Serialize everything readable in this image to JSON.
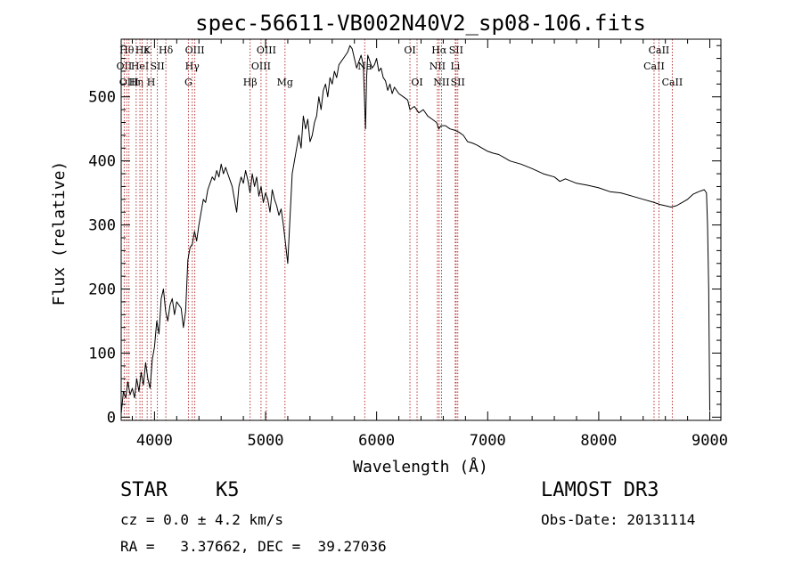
{
  "chart_data": {
    "type": "line",
    "title": "spec-56611-VB002N40V2_sp08-106.fits",
    "xlabel": "Wavelength (Å)",
    "ylabel": "Flux (relative)",
    "xlim": [
      3700,
      9100
    ],
    "ylim": [
      -5,
      590
    ],
    "x_ticks": [
      4000,
      5000,
      6000,
      7000,
      8000,
      9000
    ],
    "y_ticks": [
      0,
      100,
      200,
      300,
      400,
      500
    ],
    "grid": false,
    "series": [
      {
        "name": "flux",
        "color": "#000000",
        "points": [
          [
            3700,
            5
          ],
          [
            3720,
            40
          ],
          [
            3740,
            30
          ],
          [
            3760,
            55
          ],
          [
            3780,
            35
          ],
          [
            3800,
            45
          ],
          [
            3820,
            30
          ],
          [
            3840,
            60
          ],
          [
            3860,
            40
          ],
          [
            3880,
            70
          ],
          [
            3900,
            50
          ],
          [
            3920,
            85
          ],
          [
            3940,
            60
          ],
          [
            3960,
            45
          ],
          [
            3980,
            90
          ],
          [
            4000,
            110
          ],
          [
            4020,
            150
          ],
          [
            4040,
            130
          ],
          [
            4060,
            185
          ],
          [
            4080,
            200
          ],
          [
            4100,
            165
          ],
          [
            4120,
            150
          ],
          [
            4140,
            175
          ],
          [
            4160,
            185
          ],
          [
            4180,
            160
          ],
          [
            4200,
            180
          ],
          [
            4220,
            175
          ],
          [
            4240,
            170
          ],
          [
            4260,
            140
          ],
          [
            4280,
            165
          ],
          [
            4300,
            245
          ],
          [
            4320,
            265
          ],
          [
            4340,
            270
          ],
          [
            4360,
            290
          ],
          [
            4380,
            275
          ],
          [
            4400,
            300
          ],
          [
            4420,
            320
          ],
          [
            4440,
            340
          ],
          [
            4460,
            335
          ],
          [
            4480,
            355
          ],
          [
            4500,
            365
          ],
          [
            4520,
            375
          ],
          [
            4540,
            370
          ],
          [
            4560,
            385
          ],
          [
            4580,
            375
          ],
          [
            4600,
            395
          ],
          [
            4620,
            380
          ],
          [
            4640,
            390
          ],
          [
            4660,
            380
          ],
          [
            4680,
            370
          ],
          [
            4700,
            360
          ],
          [
            4720,
            340
          ],
          [
            4740,
            320
          ],
          [
            4760,
            360
          ],
          [
            4780,
            375
          ],
          [
            4800,
            365
          ],
          [
            4820,
            385
          ],
          [
            4840,
            370
          ],
          [
            4860,
            350
          ],
          [
            4880,
            380
          ],
          [
            4900,
            360
          ],
          [
            4920,
            375
          ],
          [
            4940,
            345
          ],
          [
            4960,
            360
          ],
          [
            4980,
            335
          ],
          [
            5000,
            350
          ],
          [
            5020,
            340
          ],
          [
            5040,
            320
          ],
          [
            5060,
            355
          ],
          [
            5080,
            340
          ],
          [
            5100,
            330
          ],
          [
            5120,
            315
          ],
          [
            5140,
            325
          ],
          [
            5160,
            300
          ],
          [
            5180,
            270
          ],
          [
            5200,
            240
          ],
          [
            5220,
            310
          ],
          [
            5240,
            380
          ],
          [
            5260,
            400
          ],
          [
            5280,
            420
          ],
          [
            5300,
            440
          ],
          [
            5320,
            420
          ],
          [
            5340,
            470
          ],
          [
            5360,
            450
          ],
          [
            5380,
            465
          ],
          [
            5400,
            430
          ],
          [
            5420,
            440
          ],
          [
            5440,
            460
          ],
          [
            5460,
            470
          ],
          [
            5480,
            500
          ],
          [
            5500,
            480
          ],
          [
            5520,
            510
          ],
          [
            5540,
            520
          ],
          [
            5560,
            500
          ],
          [
            5580,
            530
          ],
          [
            5600,
            520
          ],
          [
            5620,
            540
          ],
          [
            5640,
            530
          ],
          [
            5660,
            550
          ],
          [
            5680,
            555
          ],
          [
            5700,
            560
          ],
          [
            5720,
            565
          ],
          [
            5740,
            570
          ],
          [
            5760,
            580
          ],
          [
            5780,
            575
          ],
          [
            5800,
            560
          ],
          [
            5820,
            545
          ],
          [
            5840,
            555
          ],
          [
            5860,
            565
          ],
          [
            5880,
            550
          ],
          [
            5900,
            450
          ],
          [
            5910,
            530
          ],
          [
            5920,
            565
          ],
          [
            5940,
            555
          ],
          [
            5960,
            545
          ],
          [
            5980,
            550
          ],
          [
            6000,
            560
          ],
          [
            6020,
            540
          ],
          [
            6040,
            545
          ],
          [
            6060,
            530
          ],
          [
            6080,
            525
          ],
          [
            6100,
            510
          ],
          [
            6120,
            520
          ],
          [
            6140,
            505
          ],
          [
            6160,
            515
          ],
          [
            6200,
            505
          ],
          [
            6240,
            500
          ],
          [
            6280,
            495
          ],
          [
            6300,
            480
          ],
          [
            6340,
            485
          ],
          [
            6380,
            475
          ],
          [
            6420,
            480
          ],
          [
            6460,
            470
          ],
          [
            6500,
            465
          ],
          [
            6540,
            460
          ],
          [
            6560,
            450
          ],
          [
            6580,
            455
          ],
          [
            6620,
            455
          ],
          [
            6660,
            450
          ],
          [
            6700,
            448
          ],
          [
            6740,
            445
          ],
          [
            6780,
            440
          ],
          [
            6820,
            430
          ],
          [
            6860,
            428
          ],
          [
            6900,
            425
          ],
          [
            6950,
            420
          ],
          [
            7000,
            415
          ],
          [
            7050,
            412
          ],
          [
            7100,
            410
          ],
          [
            7150,
            405
          ],
          [
            7200,
            400
          ],
          [
            7300,
            395
          ],
          [
            7400,
            388
          ],
          [
            7500,
            380
          ],
          [
            7600,
            375
          ],
          [
            7650,
            368
          ],
          [
            7700,
            372
          ],
          [
            7800,
            365
          ],
          [
            7900,
            362
          ],
          [
            8000,
            358
          ],
          [
            8100,
            352
          ],
          [
            8200,
            350
          ],
          [
            8300,
            345
          ],
          [
            8400,
            340
          ],
          [
            8500,
            335
          ],
          [
            8550,
            332
          ],
          [
            8600,
            330
          ],
          [
            8650,
            328
          ],
          [
            8700,
            330
          ],
          [
            8750,
            335
          ],
          [
            8800,
            340
          ],
          [
            8850,
            348
          ],
          [
            8900,
            352
          ],
          [
            8950,
            355
          ],
          [
            8970,
            350
          ],
          [
            8980,
            300
          ],
          [
            8990,
            200
          ],
          [
            9000,
            10
          ]
        ]
      }
    ],
    "lines": [
      {
        "x": 3727,
        "label": "OII",
        "row": 1
      },
      {
        "x": 3750,
        "label": "Hθ",
        "row": 0
      },
      {
        "x": 3770,
        "label": "OIII",
        "row": 2
      },
      {
        "x": 3835,
        "label": "Hη",
        "row": 2
      },
      {
        "x": 3869,
        "label": "HeI",
        "row": 1
      },
      {
        "x": 3889,
        "label": "Hε",
        "row": 0
      },
      {
        "x": 3934,
        "label": "K",
        "row": 0
      },
      {
        "x": 3969,
        "label": "H",
        "row": 2
      },
      {
        "x": 4026,
        "label": "SII",
        "row": 1
      },
      {
        "x": 4102,
        "label": "Hδ",
        "row": 0
      },
      {
        "x": 4305,
        "label": "G",
        "row": 2
      },
      {
        "x": 4340,
        "label": "Hγ",
        "row": 1
      },
      {
        "x": 4363,
        "label": "OIII",
        "row": 0
      },
      {
        "x": 4861,
        "label": "Hβ",
        "row": 2
      },
      {
        "x": 4959,
        "label": "OIII",
        "row": 1
      },
      {
        "x": 5007,
        "label": "OIII",
        "row": 0
      },
      {
        "x": 5175,
        "label": "Mg",
        "row": 2
      },
      {
        "x": 5893,
        "label": "Na",
        "row": 1
      },
      {
        "x": 6300,
        "label": "OI",
        "row": 0
      },
      {
        "x": 6364,
        "label": "OI",
        "row": 2
      },
      {
        "x": 6548,
        "label": "NII",
        "row": 1
      },
      {
        "x": 6563,
        "label": "Hα",
        "row": 0
      },
      {
        "x": 6584,
        "label": "NII",
        "row": 2
      },
      {
        "x": 6708,
        "label": "Li",
        "row": 1
      },
      {
        "x": 6716,
        "label": "SII",
        "row": 0
      },
      {
        "x": 6731,
        "label": "SII",
        "row": 2
      },
      {
        "x": 8498,
        "label": "CaII",
        "row": 1
      },
      {
        "x": 8542,
        "label": "CaII",
        "row": 0
      },
      {
        "x": 8662,
        "label": "CaII",
        "row": 2
      }
    ]
  },
  "info": {
    "class": "STAR",
    "subclass": "K5",
    "survey": "LAMOST DR3",
    "cz": "cz = 0.0 ± 4.2 km/s",
    "obs_date": "Obs-Date: 20131114",
    "coords": "RA =   3.37662, DEC =  39.27036"
  }
}
